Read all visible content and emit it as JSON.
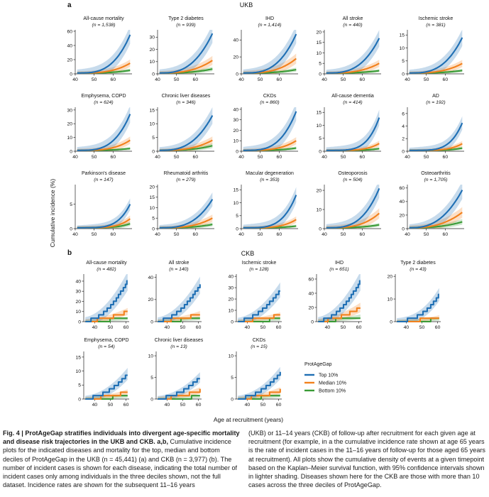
{
  "chart_data": {
    "type": "line",
    "x_axis_label": "Age at recruitment (years)",
    "y_axis_label": "Cumulative incidence (%)",
    "legend": {
      "title": "ProtAgeGap",
      "entries": [
        "Top 10%",
        "Median 10%",
        "Bottom 10%"
      ],
      "colors": [
        "#1f6fb4",
        "#f2811d",
        "#3a9b36"
      ]
    },
    "sections": [
      {
        "letter": "a",
        "title": "UKB",
        "x_ticks": [
          40,
          50,
          60
        ],
        "x_range": [
          40,
          70
        ],
        "panels": [
          {
            "name": "All-cause mortality",
            "n": "(n = 1,538)",
            "ylim": [
              0,
              62
            ],
            "yticks": [
              0,
              20,
              40,
              60
            ],
            "top_end": 55,
            "med_end": 15,
            "bot_end": 5,
            "shape": 3.2
          },
          {
            "name": "Type 2 diabetes",
            "n": "(n = 939)",
            "ylim": [
              0,
              36
            ],
            "yticks": [
              0,
              10,
              20,
              30
            ],
            "top_end": 33,
            "med_end": 11,
            "bot_end": 4,
            "shape": 2.8
          },
          {
            "name": "IHD",
            "n": "(n = 1,414)",
            "ylim": [
              0,
              52
            ],
            "yticks": [
              0,
              20,
              40
            ],
            "top_end": 47,
            "med_end": 18,
            "bot_end": 5,
            "shape": 3.0
          },
          {
            "name": "All stroke",
            "n": "(n = 440)",
            "ylim": [
              0,
              21
            ],
            "yticks": [
              0,
              5,
              10,
              15,
              20
            ],
            "top_end": 17,
            "med_end": 5,
            "bot_end": 1.5,
            "shape": 3.0
          },
          {
            "name": "Ischemic stroke",
            "n": "(n = 381)",
            "ylim": [
              0,
              17
            ],
            "yticks": [
              0,
              5,
              10,
              15
            ],
            "top_end": 14,
            "med_end": 4,
            "bot_end": 1.3,
            "shape": 3.0
          },
          {
            "name": "Emphysema, COPD",
            "n": "(n = 624)",
            "ylim": [
              0,
              32
            ],
            "yticks": [
              0,
              10,
              20,
              30
            ],
            "top_end": 27,
            "med_end": 8,
            "bot_end": 2,
            "shape": 3.4
          },
          {
            "name": "Chronic liver diseases",
            "n": "(n = 346)",
            "ylim": [
              0,
              16
            ],
            "yticks": [
              0,
              5,
              10,
              15
            ],
            "top_end": 13,
            "med_end": 4,
            "bot_end": 2,
            "shape": 2.8
          },
          {
            "name": "CKDs",
            "n": "(n = 860)",
            "ylim": [
              0,
              42
            ],
            "yticks": [
              0,
              10,
              20,
              30,
              40
            ],
            "top_end": 38,
            "med_end": 10,
            "bot_end": 3,
            "shape": 3.4
          },
          {
            "name": "All-cause dementia",
            "n": "(n = 414)",
            "ylim": [
              0,
              17
            ],
            "yticks": [
              0,
              5,
              10,
              15
            ],
            "top_end": 13,
            "med_end": 3,
            "bot_end": 1,
            "shape": 4.5
          },
          {
            "name": "AD",
            "n": "(n = 192)",
            "ylim": [
              0,
              7
            ],
            "yticks": [
              0,
              2,
              4,
              6
            ],
            "top_end": 4.5,
            "med_end": 1.2,
            "bot_end": 0.5,
            "shape": 4.5
          },
          {
            "name": "Parkinson's disease",
            "n": "(n = 147)",
            "ylim": [
              0,
              9
            ],
            "yticks": [
              0,
              5
            ],
            "top_end": 5,
            "med_end": 2,
            "bot_end": 1,
            "shape": 4.5
          },
          {
            "name": "Rheumatoid arthritis",
            "n": "(n = 279)",
            "ylim": [
              0,
              21
            ],
            "yticks": [
              0,
              5,
              10,
              15,
              20
            ],
            "top_end": 14,
            "med_end": 5,
            "bot_end": 2,
            "shape": 3.0
          },
          {
            "name": "Macular degeneration",
            "n": "(n = 353)",
            "ylim": [
              0,
              17
            ],
            "yticks": [
              0,
              5,
              10,
              15
            ],
            "top_end": 13,
            "med_end": 3.5,
            "bot_end": 1,
            "shape": 4.0
          },
          {
            "name": "Osteoporosis",
            "n": "(n = 504)",
            "ylim": [
              0,
              23
            ],
            "yticks": [
              0,
              10,
              20
            ],
            "top_end": 21,
            "med_end": 8,
            "bot_end": 2,
            "shape": 3.2
          },
          {
            "name": "Osteoarthritis",
            "n": "(n = 1,705)",
            "ylim": [
              0,
              65
            ],
            "yticks": [
              0,
              20,
              40,
              60
            ],
            "top_end": 57,
            "med_end": 24,
            "bot_end": 10,
            "shape": 2.6
          }
        ]
      },
      {
        "letter": "b",
        "title": "CKB",
        "x_ticks": [
          40,
          50,
          60
        ],
        "x_range": [
          33,
          62
        ],
        "panels": [
          {
            "name": "All-cause mortality",
            "n": "(n = 482)",
            "ylim": [
              0,
              47
            ],
            "yticks": [
              0,
              10,
              20,
              30,
              40
            ],
            "top_end": 40,
            "med_end": 10,
            "bot_end": 3,
            "shape": 1.9
          },
          {
            "name": "All stroke",
            "n": "(n = 140)",
            "ylim": [
              0,
              43
            ],
            "yticks": [
              0,
              20,
              40
            ],
            "top_end": 33,
            "med_end": 7,
            "bot_end": 3,
            "shape": 1.9
          },
          {
            "name": "Ischemic stroke",
            "n": "(n = 128)",
            "ylim": [
              0,
              42
            ],
            "yticks": [
              0,
              10,
              20,
              30,
              40
            ],
            "top_end": 28,
            "med_end": 6,
            "bot_end": 2,
            "shape": 1.9
          },
          {
            "name": "IHD",
            "n": "(n = 651)",
            "ylim": [
              0,
              67
            ],
            "yticks": [
              0,
              20,
              40,
              60
            ],
            "top_end": 57,
            "med_end": 20,
            "bot_end": 7,
            "shape": 1.9
          },
          {
            "name": "Type 2 diabetes",
            "n": "(n = 43)",
            "ylim": [
              0,
              21
            ],
            "yticks": [
              0,
              10,
              20
            ],
            "top_end": 12,
            "med_end": 2,
            "bot_end": 1,
            "shape": 2.5
          },
          {
            "name": "Emphysema, COPD",
            "n": "(n = 54)",
            "ylim": [
              0,
              17
            ],
            "yticks": [
              0,
              5,
              10,
              15
            ],
            "top_end": 9,
            "med_end": 2.5,
            "bot_end": 1,
            "shape": 2.0
          },
          {
            "name": "Chronic liver diseases",
            "n": "(n = 13)",
            "ylim": [
              0,
              11
            ],
            "yticks": [
              0,
              5,
              10
            ],
            "top_end": 5,
            "med_end": 2,
            "bot_end": 0.5,
            "shape": 2.0
          },
          {
            "name": "CKDs",
            "n": "(n = 15)",
            "ylim": [
              0,
              11
            ],
            "yticks": [
              0,
              5,
              10
            ],
            "top_end": 6,
            "med_end": 2,
            "bot_end": 0.8,
            "shape": 2.0
          }
        ]
      }
    ]
  },
  "caption": {
    "left_label": "Fig. 4 | ProtAgeGap stratifies individuals into divergent age-specific mortality and disease risk trajectories in the UKB and CKB. a,b,",
    "left_body": " Cumulative incidence plots for the indicated diseases and mortality for the top, median and bottom deciles of ProtAgeGap in the UKB (n = 45,441) (a) and CKB (n = 3,977) (b). The number of incident cases is shown for each disease, indicating the total number of incident cases only among individuals in the three deciles shown, not the full dataset. Incidence rates are shown for the subsequent 11–16 years",
    "right_body": "(UKB) or 11–14 years (CKB) of follow-up after recruitment for each given age at recruitment (for example, in a the cumulative incidence rate shown at age 65 years is the rate of incident cases in the 11–16 years of follow-up for those aged 65 years at recruitment). All plots show the cumulative density of events at a given timepoint based on the Kaplan–Meier survival function, with 95% confidence intervals shown in lighter shading. Diseases shown here for the CKB are those with more than 10 cases across the three deciles of ProtAgeGap."
  }
}
